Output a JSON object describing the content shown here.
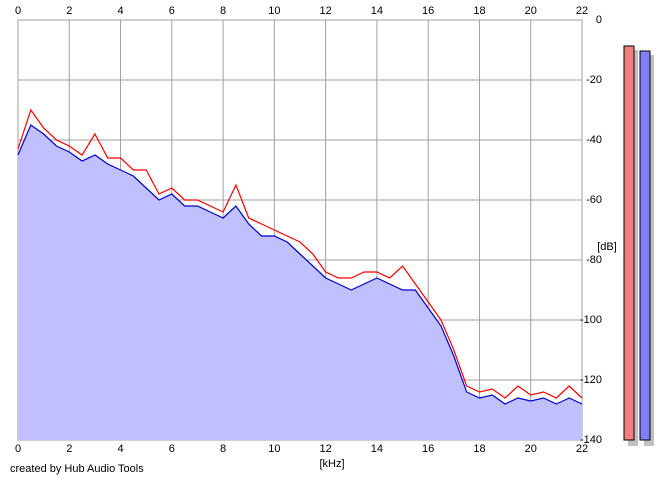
{
  "chart_data": {
    "type": "line",
    "xlabel": "[kHz]",
    "ylabel": "[dB]",
    "footer": "created by Hub Audio Tools",
    "xlim": [
      0,
      22
    ],
    "xticks": [
      0,
      2,
      4,
      6,
      8,
      10,
      12,
      14,
      16,
      18,
      20,
      22
    ],
    "ylim": [
      -140,
      0
    ],
    "yticks": [
      0,
      -20,
      -40,
      -60,
      -80,
      -100,
      -120,
      -140
    ],
    "grid": true,
    "fill_color": "#c0c0ff",
    "x": [
      0,
      0.5,
      1,
      1.5,
      2,
      2.5,
      3,
      3.5,
      4,
      4.5,
      5,
      5.5,
      6,
      6.5,
      7,
      7.5,
      8,
      8.5,
      9,
      9.5,
      10,
      10.5,
      11,
      11.5,
      12,
      12.5,
      13,
      13.5,
      14,
      14.5,
      15,
      15.5,
      16,
      16.5,
      17,
      17.5,
      18,
      18.5,
      19,
      19.5,
      20,
      20.5,
      21,
      21.5,
      22
    ],
    "series": [
      {
        "name": "L",
        "color": "#ff0000",
        "values": [
          -43,
          -30,
          -36,
          -40,
          -42,
          -45,
          -38,
          -46,
          -46,
          -50,
          -50,
          -58,
          -56,
          -60,
          -60,
          -62,
          -64,
          -55,
          -66,
          -68,
          -70,
          -72,
          -74,
          -78,
          -84,
          -86,
          -86,
          -84,
          -84,
          -86,
          -82,
          -88,
          -94,
          -100,
          -110,
          -122,
          -124,
          -123,
          -126,
          -122,
          -125,
          -124,
          -126,
          -122,
          -126
        ]
      },
      {
        "name": "R",
        "color": "#0000cc",
        "values": [
          -45,
          -35,
          -38,
          -42,
          -44,
          -47,
          -45,
          -48,
          -50,
          -52,
          -56,
          -60,
          -58,
          -62,
          -62,
          -64,
          -66,
          -62,
          -68,
          -72,
          -72,
          -74,
          -78,
          -82,
          -86,
          -88,
          -90,
          -88,
          -86,
          -88,
          -90,
          -90,
          -96,
          -102,
          -112,
          -124,
          -126,
          -125,
          -128,
          -126,
          -127,
          -126,
          -128,
          -126,
          -128
        ]
      }
    ]
  }
}
